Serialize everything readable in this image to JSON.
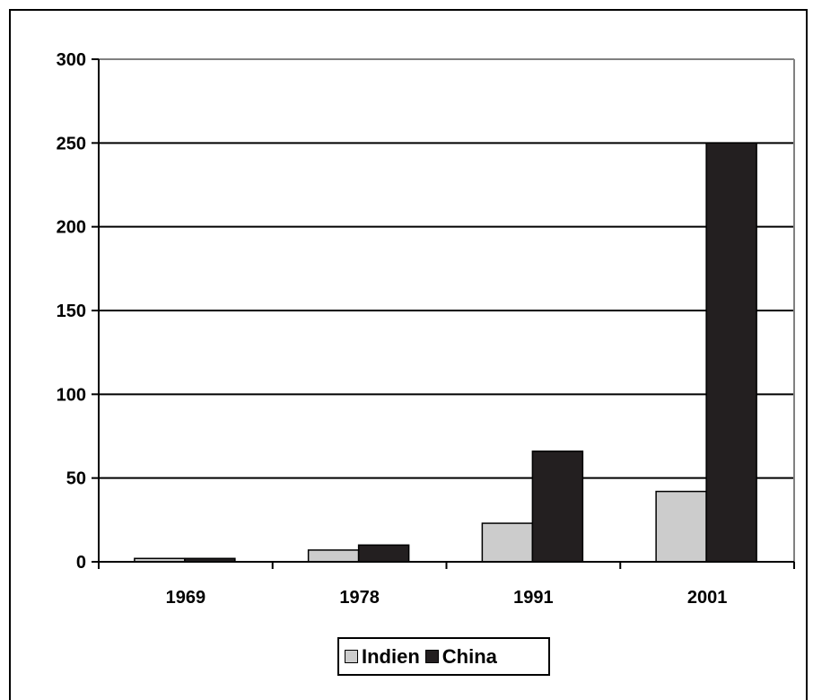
{
  "chart_data": {
    "type": "bar",
    "categories": [
      "1969",
      "1978",
      "1991",
      "2001"
    ],
    "series": [
      {
        "name": "Indien",
        "values": [
          2,
          7,
          23,
          42
        ],
        "color": "#cccccc"
      },
      {
        "name": "China",
        "values": [
          2,
          10,
          66,
          250
        ],
        "color": "#231f20"
      }
    ],
    "ylim": [
      0,
      300
    ],
    "yticks": [
      0,
      50,
      100,
      150,
      200,
      250,
      300
    ],
    "grid": true,
    "legend": "bottom-center",
    "title": "",
    "xlabel": "",
    "ylabel": ""
  }
}
